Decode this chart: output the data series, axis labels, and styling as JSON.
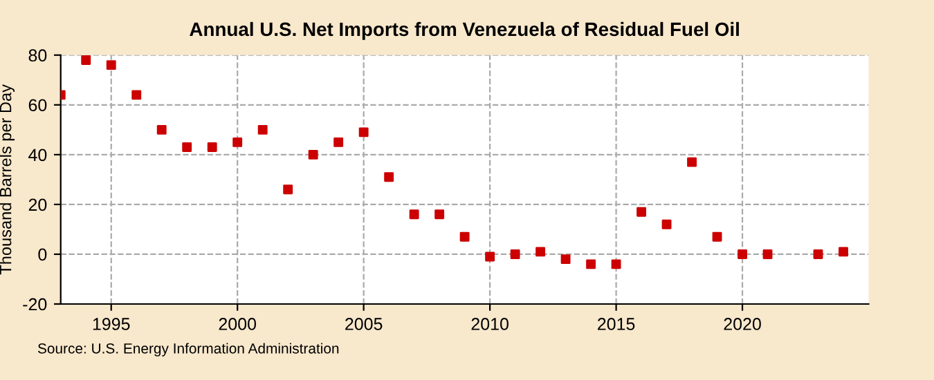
{
  "chart_data": {
    "type": "scatter",
    "title": "Annual U.S. Net Imports from Venezuela of Residual Fuel Oil",
    "ylabel": "Thousand Barrels per Day",
    "x": [
      1993,
      1994,
      1995,
      1996,
      1997,
      1998,
      1999,
      2000,
      2001,
      2002,
      2003,
      2004,
      2005,
      2006,
      2007,
      2008,
      2009,
      2010,
      2011,
      2012,
      2013,
      2014,
      2015,
      2016,
      2017,
      2018,
      2019,
      2020,
      2021,
      2023,
      2024
    ],
    "series": [
      {
        "color": "#cc0000",
        "values": [
          64,
          78,
          76,
          64,
          50,
          43,
          43,
          45,
          50,
          26,
          40,
          45,
          49,
          31,
          16,
          16,
          7,
          -1,
          0,
          1,
          -2,
          -4,
          -4,
          17,
          12,
          37,
          7,
          0,
          0,
          0,
          1
        ]
      }
    ],
    "xlim": [
      1993,
      2025
    ],
    "xticks": [
      1995,
      2000,
      2005,
      2010,
      2015,
      2020
    ],
    "ylim": [
      -20,
      80
    ],
    "yticks": [
      -20,
      0,
      20,
      40,
      60,
      80
    ],
    "grid": true,
    "marker": "square",
    "line_style": "dashed",
    "annotations": [
      "Source: U.S. Energy Information Administration"
    ]
  }
}
